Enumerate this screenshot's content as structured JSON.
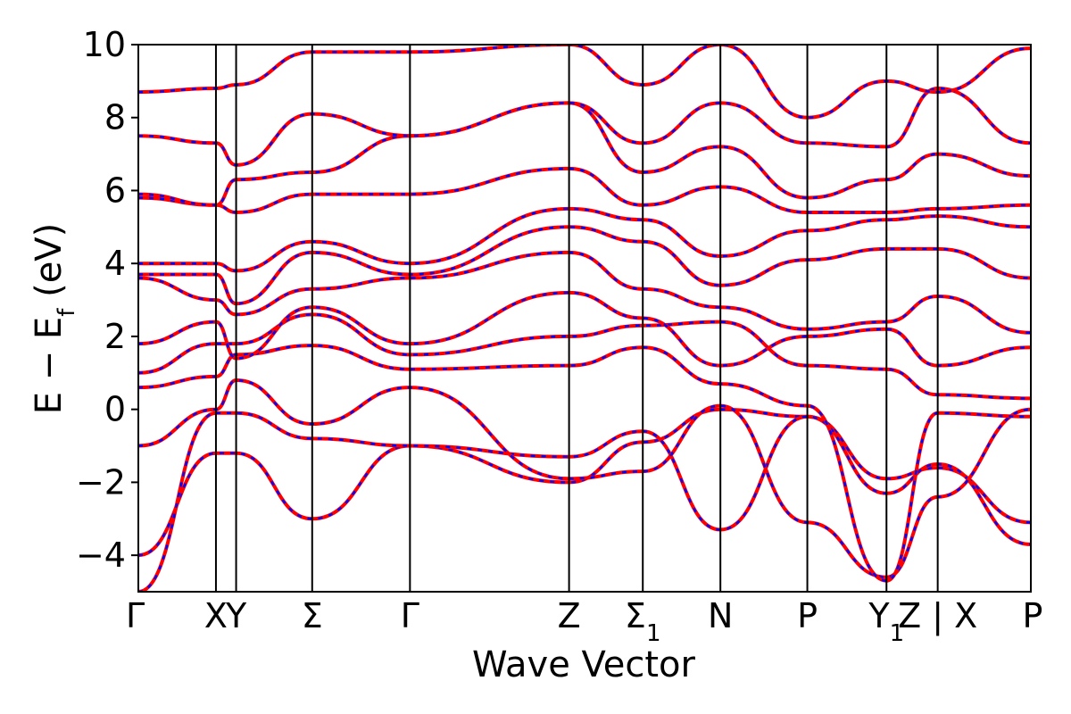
{
  "chart_data": {
    "type": "line",
    "title": "",
    "xlabel": "Wave Vector",
    "ylabel": "E − E_f (eV)",
    "ylabel_main": "E  −  E",
    "ylabel_sub": "f",
    "ylabel_tail": " (eV)",
    "ylim": [
      -5,
      10
    ],
    "yticks": [
      -4,
      -2,
      0,
      2,
      4,
      6,
      8,
      10
    ],
    "ytick_labels": [
      "−4",
      "−2",
      "0",
      "2",
      "4",
      "6",
      "8",
      "10"
    ],
    "grid": false,
    "xlim": [
      0,
      11.5
    ],
    "kpoints": [
      {
        "x": 0.0,
        "label": "Γ",
        "sub": ""
      },
      {
        "x": 1.0,
        "label": "X",
        "sub": ""
      },
      {
        "x": 1.26,
        "label": "Y",
        "sub": ""
      },
      {
        "x": 2.24,
        "label": "Σ",
        "sub": ""
      },
      {
        "x": 3.5,
        "label": "Γ",
        "sub": ""
      },
      {
        "x": 5.55,
        "label": "Z",
        "sub": ""
      },
      {
        "x": 6.5,
        "label": "Σ",
        "sub": "1"
      },
      {
        "x": 7.5,
        "label": "N",
        "sub": ""
      },
      {
        "x": 8.62,
        "label": "P",
        "sub": ""
      },
      {
        "x": 9.64,
        "label": "Y",
        "sub": "1"
      },
      {
        "x": 10.3,
        "label": "Z | X",
        "sub": ""
      },
      {
        "x": 11.5,
        "label": "P",
        "sub": ""
      }
    ],
    "colors": {
      "dft": "#0000ff",
      "model": "#ff0000",
      "kline": "#000000"
    },
    "series": [
      {
        "values": [
          -4.0,
          -1.2,
          -1.2,
          -3.0,
          -1.0,
          -2.0,
          -0.9,
          0.0,
          -0.2,
          -1.9,
          -1.6,
          -3.1
        ]
      },
      {
        "values": [
          -5.0,
          -0.1,
          -0.1,
          -0.8,
          -1.0,
          -1.3,
          -0.6,
          -3.3,
          -0.2,
          -2.3,
          -1.5,
          -3.7
        ]
      },
      {
        "values": [
          -1.0,
          0.0,
          0.8,
          -0.4,
          0.6,
          -1.9,
          -1.7,
          0.1,
          -3.1,
          -4.6,
          -2.4,
          0.0
        ]
      },
      {
        "values": [
          0.6,
          0.9,
          1.5,
          1.75,
          1.1,
          1.2,
          1.7,
          0.7,
          0.1,
          -4.7,
          -0.1,
          -0.2
        ]
      },
      {
        "values": [
          1.0,
          1.8,
          1.8,
          2.6,
          1.5,
          2.0,
          2.3,
          2.4,
          1.2,
          1.1,
          0.4,
          0.3
        ]
      },
      {
        "values": [
          1.8,
          2.4,
          1.4,
          2.8,
          1.8,
          3.2,
          2.5,
          1.2,
          2.0,
          2.2,
          1.2,
          1.7
        ]
      },
      {
        "values": [
          3.6,
          3.0,
          2.6,
          3.3,
          3.6,
          4.3,
          3.3,
          2.8,
          2.2,
          2.4,
          3.1,
          2.1
        ]
      },
      {
        "values": [
          3.7,
          3.7,
          2.9,
          4.3,
          3.7,
          5.0,
          4.6,
          3.4,
          4.1,
          4.4,
          4.4,
          3.6
        ]
      },
      {
        "values": [
          4.0,
          4.0,
          3.8,
          4.6,
          4.0,
          5.5,
          5.2,
          4.2,
          4.9,
          5.2,
          5.3,
          5.0
        ]
      },
      {
        "values": [
          5.8,
          5.6,
          5.4,
          5.9,
          5.9,
          6.6,
          5.6,
          6.1,
          5.4,
          5.4,
          5.5,
          5.6
        ]
      },
      {
        "values": [
          5.9,
          5.6,
          6.3,
          6.5,
          7.5,
          8.4,
          6.5,
          7.2,
          5.8,
          6.3,
          7.0,
          6.4
        ]
      },
      {
        "values": [
          7.5,
          7.3,
          6.7,
          8.1,
          7.5,
          8.4,
          7.3,
          8.4,
          7.3,
          7.2,
          8.8,
          7.3
        ]
      },
      {
        "values": [
          8.7,
          8.8,
          8.9,
          9.8,
          9.8,
          10.0,
          8.9,
          10.0,
          8.0,
          9.0,
          8.7,
          9.9
        ]
      }
    ]
  }
}
